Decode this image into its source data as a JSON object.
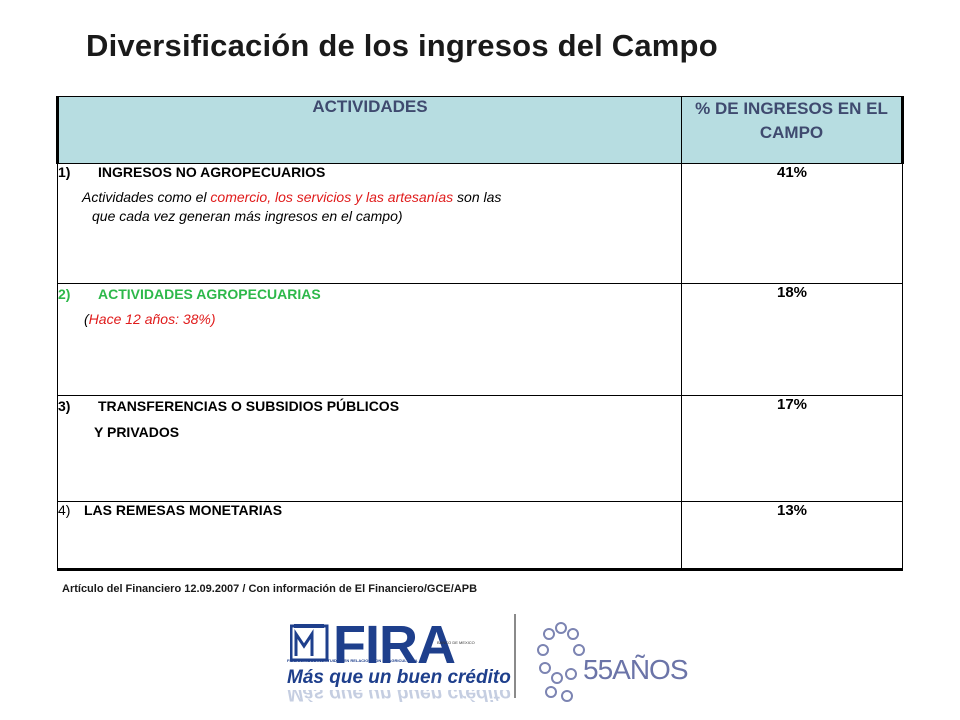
{
  "title": "Diversificación de los ingresos del Campo",
  "table": {
    "headers": [
      "ACTIVIDADES",
      "% DE INGRESOS EN EL CAMPO"
    ],
    "rows": [
      {
        "number": "1)",
        "heading": "INGRESOS NO AGROPECUARIOS",
        "desc_a": "Actividades como el ",
        "desc_red": "comercio, los servicios y las artesanías",
        "desc_b": " son las",
        "desc_c": "que cada vez generan más ingresos en el campo)",
        "value": "41%"
      },
      {
        "number": "2)",
        "heading": "ACTIVIDADES AGROPECUARIAS",
        "desc_open": "(",
        "desc_red": "Hace 12 años:  38%)",
        "value": "18%"
      },
      {
        "number": "3)",
        "heading": "TRANSFERENCIAS O SUBSIDIOS PÚBLICOS",
        "heading2": "Y PRIVADOS",
        "value": "17%"
      },
      {
        "number": "4)",
        "heading": "LAS REMESAS MONETARIAS",
        "value": "13%"
      }
    ]
  },
  "source": "Artículo del Financiero 12.09.2007 /  Con información de El Financiero/GCE/APB",
  "logo": {
    "brand": "FIRA",
    "brand_sub": "FIDEICOMISOS INSTITUIDOS EN RELACION CON LA AGRICULTURA",
    "partner": "BANCO DE MEXICO",
    "slogan": "Más que un buen crédito",
    "anniversary": "55AÑOS"
  },
  "colors": {
    "header_bg": "#b7dde1",
    "header_text": "#3f4a6f",
    "highlight_red": "#e01b1b",
    "highlight_green": "#2db84a",
    "brand_blue": "#1e3f8c"
  }
}
